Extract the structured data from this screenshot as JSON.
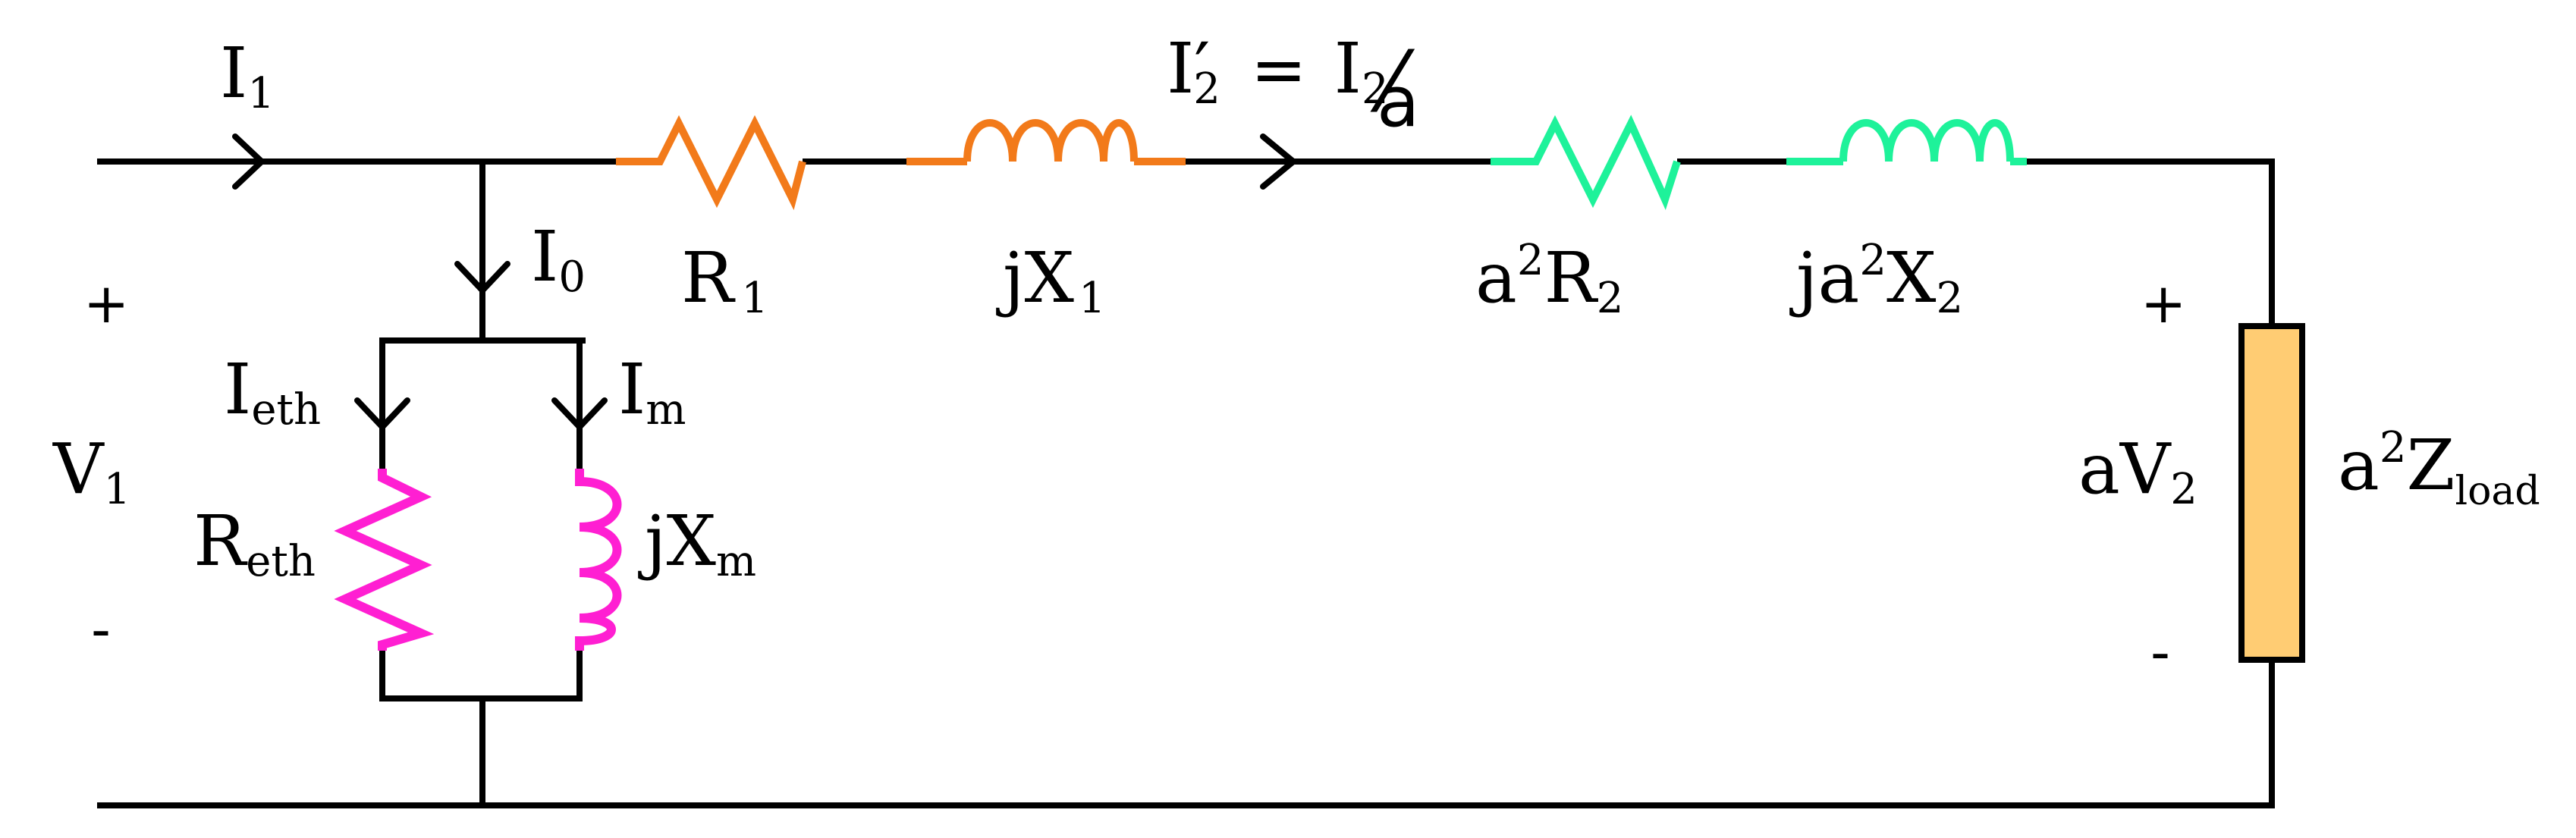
{
  "colors": {
    "wire": "#000000",
    "primary": "#F27A1A",
    "secondary": "#1EF29A",
    "magnetizing": "#FF1FD2",
    "load_fill": "#FFCC73",
    "load_stroke": "#000000"
  },
  "labels": {
    "i1": {
      "main": "I",
      "sub": "1"
    },
    "i0": {
      "main": "I",
      "sub": "0"
    },
    "ieth": {
      "main": "I",
      "sub": "eth"
    },
    "im": {
      "main": "I",
      "sub": "m"
    },
    "r1": {
      "main": "R",
      "sub": "1"
    },
    "jx1": {
      "main": "jX",
      "sub": "1"
    },
    "a2r2": {
      "pre": "a",
      "sup": "2",
      "main": "R",
      "sub": "2"
    },
    "ja2x2": {
      "pre": "ja",
      "sup": "2",
      "main": "X",
      "sub": "2"
    },
    "reth": {
      "main": "R",
      "sub": "eth"
    },
    "jxm": {
      "main": "jX",
      "sub": "m"
    },
    "v1": {
      "main": "V",
      "sub": "1"
    },
    "av2": {
      "main": "aV",
      "sub": "2"
    },
    "zload": {
      "pre": "a",
      "sup": "2",
      "main": "Z",
      "sub": "load"
    },
    "i2prime": {
      "main": "I",
      "prime": "′",
      "sub": "2",
      "eq": "=",
      "rhs_main": "I",
      "rhs_sub": "2",
      "slash": "⁄",
      "denom": "a"
    },
    "plus_left": "+",
    "minus_left": "-",
    "plus_right": "+",
    "minus_right": "-"
  }
}
